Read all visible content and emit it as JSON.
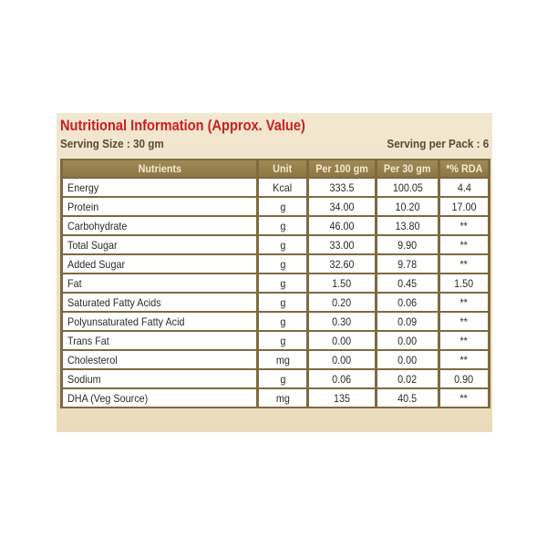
{
  "title": "Nutritional Information (Approx. Value)",
  "serving_size": "Serving Size : 30 gm",
  "serving_per_pack": "Serving per Pack : 6",
  "columns": [
    "Nutrients",
    "Unit",
    "Per 100 gm",
    "Per 30 gm",
    "*% RDA"
  ],
  "rows": [
    {
      "nutrient": "Energy",
      "unit": "Kcal",
      "per100": "333.5",
      "per30": "100.05",
      "rda": "4.4"
    },
    {
      "nutrient": "Protein",
      "unit": "g",
      "per100": "34.00",
      "per30": "10.20",
      "rda": "17.00"
    },
    {
      "nutrient": "Carbohydrate",
      "unit": "g",
      "per100": "46.00",
      "per30": "13.80",
      "rda": "**"
    },
    {
      "nutrient": "Total Sugar",
      "unit": "g",
      "per100": "33.00",
      "per30": "9.90",
      "rda": "**"
    },
    {
      "nutrient": "Added Sugar",
      "unit": "g",
      "per100": "32.60",
      "per30": "9.78",
      "rda": "**"
    },
    {
      "nutrient": "Fat",
      "unit": "g",
      "per100": "1.50",
      "per30": "0.45",
      "rda": "1.50"
    },
    {
      "nutrient": "Saturated Fatty Acids",
      "unit": "g",
      "per100": "0.20",
      "per30": "0.06",
      "rda": "**"
    },
    {
      "nutrient": "Polyunsaturated Fatty Acid",
      "unit": "g",
      "per100": "0.30",
      "per30": "0.09",
      "rda": "**"
    },
    {
      "nutrient": "Trans Fat",
      "unit": "g",
      "per100": "0.00",
      "per30": "0.00",
      "rda": "**"
    },
    {
      "nutrient": "Cholesterol",
      "unit": "mg",
      "per100": "0.00",
      "per30": "0.00",
      "rda": "**"
    },
    {
      "nutrient": "Sodium",
      "unit": "g",
      "per100": "0.06",
      "per30": "0.02",
      "rda": "0.90"
    },
    {
      "nutrient": "DHA (Veg Source)",
      "unit": "mg",
      "per100": "135",
      "per30": "40.5",
      "rda": "**"
    }
  ],
  "colors": {
    "title": "#cc1e22",
    "panel": "#efe2c6",
    "header_bg": "#8c7644",
    "grid": "#7d6a3e",
    "cell": "#ffffff"
  }
}
